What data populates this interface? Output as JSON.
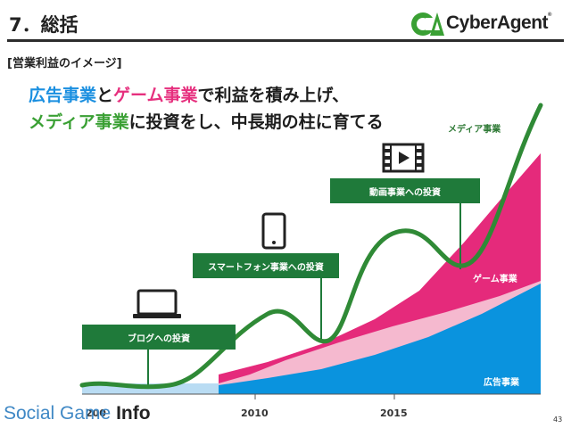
{
  "slide": {
    "title": "7．総括",
    "subtitle": "[営業利益のイメージ]",
    "headline": {
      "line1": {
        "part1": "広告事業",
        "part2": "と",
        "part3": "ゲーム事業",
        "part4": "で利益を積み上げ、"
      },
      "line2": {
        "part1": "メディア事業",
        "part2": "に投資をし、中長期の柱に育てる"
      }
    },
    "page_number": "43"
  },
  "logo": {
    "text": "CyberAgent",
    "mark": "®"
  },
  "watermark": {
    "part1": "Social Game ",
    "part2": "Info"
  },
  "callouts": {
    "blog": "ブログへの投資",
    "smartphone": "スマートフォン事業への投資",
    "video": "動画事業への投資"
  },
  "icons": [
    "laptop-icon",
    "smartphone-icon",
    "video-icon"
  ],
  "colors": {
    "ad": "#0a93de",
    "game": "#e52a7b",
    "media_shade": "#f5b9cf",
    "curve": "#2f8a36",
    "callout": "#1f7a3a",
    "baseline": "#b9dcf3"
  },
  "chart_data": {
    "type": "area",
    "series_labels": {
      "media": "メディア事業",
      "game": "ゲーム事業",
      "ad": "広告事業"
    },
    "x_ticks": [
      "200",
      "2010",
      "2015"
    ]
  }
}
